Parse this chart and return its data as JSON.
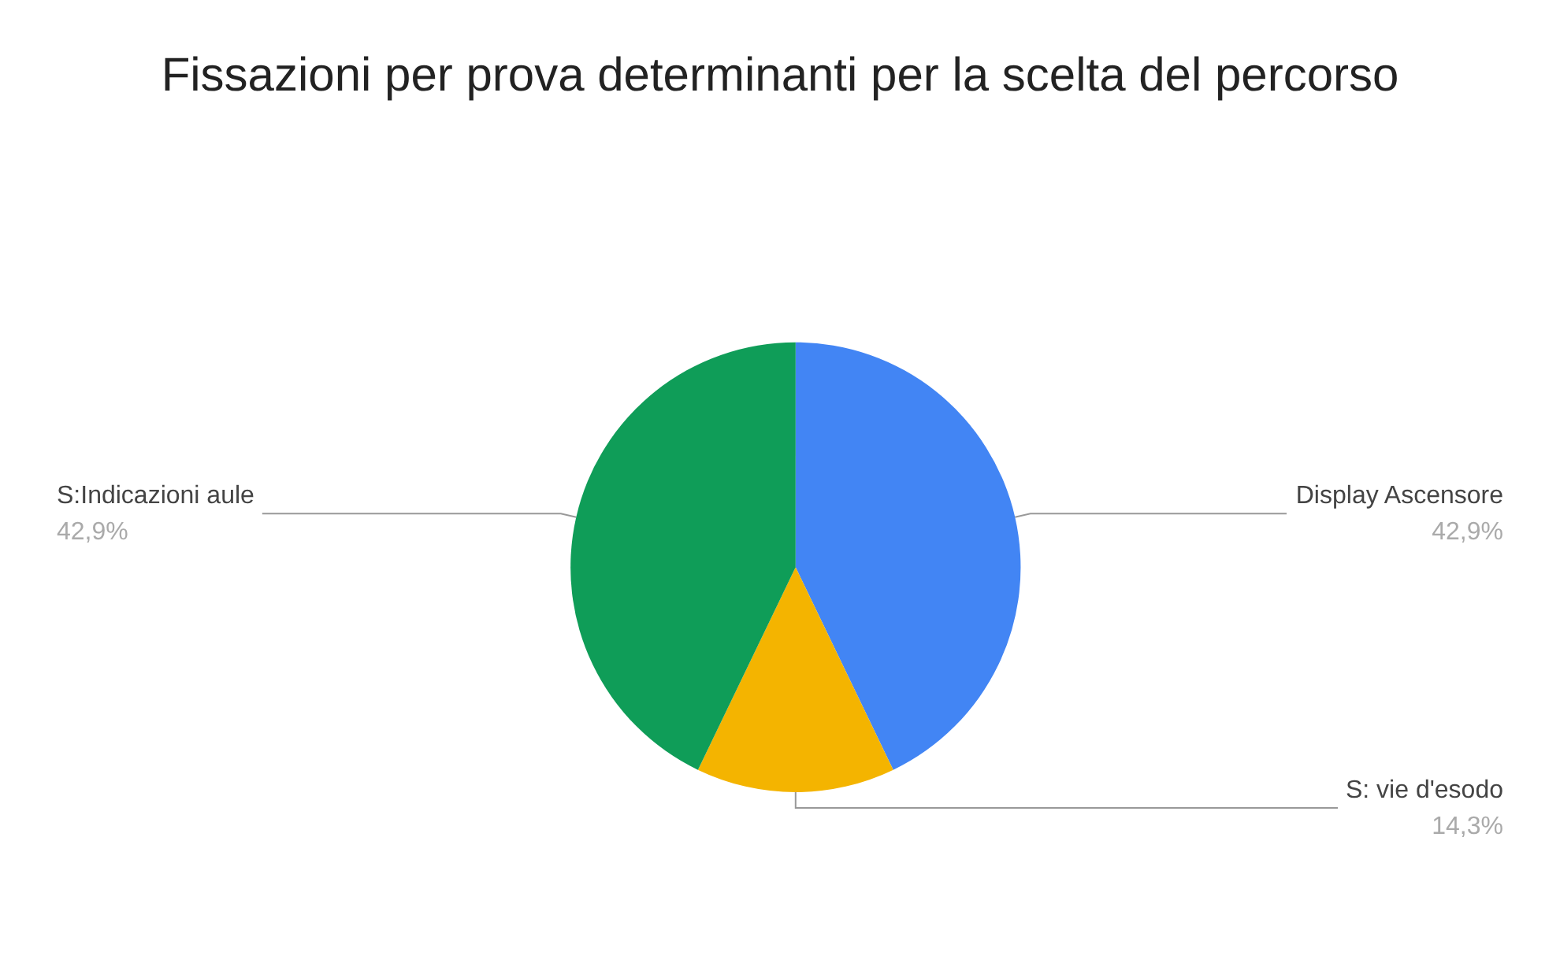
{
  "chart_data": {
    "type": "pie",
    "title": "Fissazioni per prova determinanti per la scelta del percorso",
    "categories": [
      "Display Ascensore",
      "S: vie d'esodo",
      "S:Indicazioni aule"
    ],
    "values": [
      42.9,
      14.3,
      42.9
    ],
    "value_labels": [
      "42,9%",
      "14,3%",
      "42,9%"
    ],
    "colors": [
      "#4285f4",
      "#f4b400",
      "#0f9d58"
    ],
    "legend": false
  }
}
